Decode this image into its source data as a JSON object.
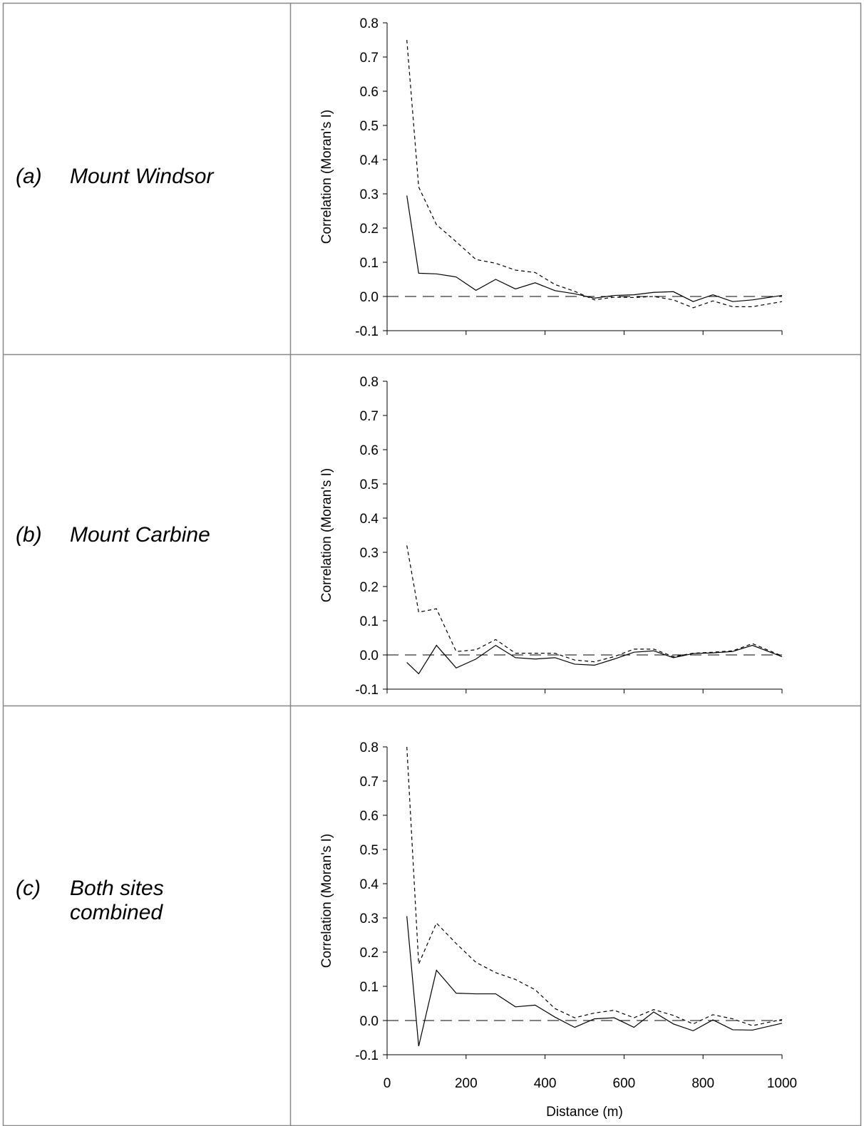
{
  "chart_data": [
    {
      "type": "line",
      "label": "(a)",
      "title": "Mount Windsor",
      "ylabel": "Correlation (Moran's I)",
      "xlim": [
        0,
        1000
      ],
      "xticks": [
        0,
        200,
        400,
        600,
        800,
        1000
      ],
      "xtick_labels": false,
      "ylim": [
        -0.1,
        0.8
      ],
      "yticks": [
        -0.1,
        {
          "value": 0,
          "label": "0.0"
        },
        0.1,
        0.2,
        0.3,
        0.4,
        0.5,
        0.6,
        0.7,
        0.8
      ],
      "hline": 0,
      "hline_style": "long-dashed",
      "x": [
        50,
        80,
        125,
        175,
        225,
        275,
        325,
        375,
        425,
        475,
        525,
        575,
        625,
        675,
        725,
        775,
        825,
        875,
        925,
        1000
      ],
      "series": [
        {
          "color": "#000000",
          "style": "solid",
          "values": [
            0.295,
            0.068,
            0.066,
            0.057,
            0.018,
            0.05,
            0.022,
            0.04,
            0.017,
            0.008,
            -0.005,
            0.003,
            0.005,
            0.012,
            0.014,
            -0.015,
            0.005,
            -0.015,
            -0.01,
            0.003
          ]
        },
        {
          "color": "#000000",
          "style": "dashed",
          "values": [
            0.75,
            0.32,
            0.21,
            0.16,
            0.108,
            0.097,
            0.077,
            0.07,
            0.035,
            0.015,
            -0.01,
            -0.002,
            -0.003,
            0.0,
            -0.01,
            -0.033,
            -0.013,
            -0.03,
            -0.03,
            -0.015
          ]
        }
      ]
    },
    {
      "type": "line",
      "label": "(b)",
      "title": "Mount Carbine",
      "ylabel": "Correlation (Moran's I)",
      "xlim": [
        0,
        1000
      ],
      "xticks": [
        0,
        200,
        400,
        600,
        800,
        1000
      ],
      "xtick_labels": false,
      "ylim": [
        -0.1,
        0.8
      ],
      "yticks": [
        -0.1,
        {
          "value": 0,
          "label": "0.0"
        },
        0.1,
        0.2,
        0.3,
        0.4,
        0.5,
        0.6,
        0.7,
        0.8
      ],
      "hline": 0,
      "hline_style": "long-dashed",
      "x": [
        50,
        80,
        125,
        175,
        225,
        275,
        325,
        375,
        425,
        475,
        525,
        575,
        625,
        675,
        725,
        775,
        825,
        875,
        925,
        1000
      ],
      "series": [
        {
          "color": "#000000",
          "style": "solid",
          "values": [
            -0.022,
            -0.055,
            0.028,
            -0.038,
            -0.012,
            0.028,
            -0.008,
            -0.012,
            -0.008,
            -0.027,
            -0.03,
            -0.012,
            0.008,
            0.012,
            -0.008,
            0.004,
            0.006,
            0.01,
            0.028,
            -0.005
          ]
        },
        {
          "color": "#000000",
          "style": "dashed",
          "values": [
            0.32,
            0.125,
            0.135,
            0.01,
            0.015,
            0.045,
            0.005,
            0.005,
            0.005,
            -0.015,
            -0.02,
            -0.005,
            0.017,
            0.017,
            -0.005,
            0.005,
            0.008,
            0.012,
            0.033,
            -0.003
          ]
        }
      ]
    },
    {
      "type": "line",
      "label": "(c)",
      "title": "Both sites combined",
      "ylabel": "Correlation (Moran's I)",
      "xlabel": "Distance (m)",
      "xlim": [
        0,
        1000
      ],
      "xticks": [
        0,
        200,
        400,
        600,
        800,
        1000
      ],
      "xtick_labels": true,
      "ylim": [
        -0.1,
        0.8
      ],
      "yticks": [
        -0.1,
        {
          "value": 0,
          "label": "0.0"
        },
        0.1,
        0.2,
        0.3,
        0.4,
        0.5,
        0.6,
        0.7,
        0.8
      ],
      "hline": 0,
      "hline_style": "long-dashed",
      "x": [
        50,
        80,
        125,
        175,
        225,
        275,
        325,
        375,
        425,
        475,
        525,
        575,
        625,
        675,
        725,
        775,
        825,
        875,
        925,
        1000
      ],
      "series": [
        {
          "color": "#000000",
          "style": "solid",
          "values": [
            0.305,
            -0.075,
            0.147,
            0.08,
            0.078,
            0.078,
            0.04,
            0.045,
            0.01,
            -0.02,
            0.005,
            0.008,
            -0.02,
            0.025,
            -0.01,
            -0.03,
            0.002,
            -0.027,
            -0.028,
            -0.008
          ]
        },
        {
          "color": "#000000",
          "style": "dashed",
          "values": [
            0.8,
            0.165,
            0.285,
            0.225,
            0.17,
            0.14,
            0.12,
            0.09,
            0.035,
            0.008,
            0.022,
            0.03,
            0.008,
            0.032,
            0.015,
            -0.01,
            0.017,
            0.005,
            -0.015,
            0.003
          ]
        }
      ]
    }
  ]
}
